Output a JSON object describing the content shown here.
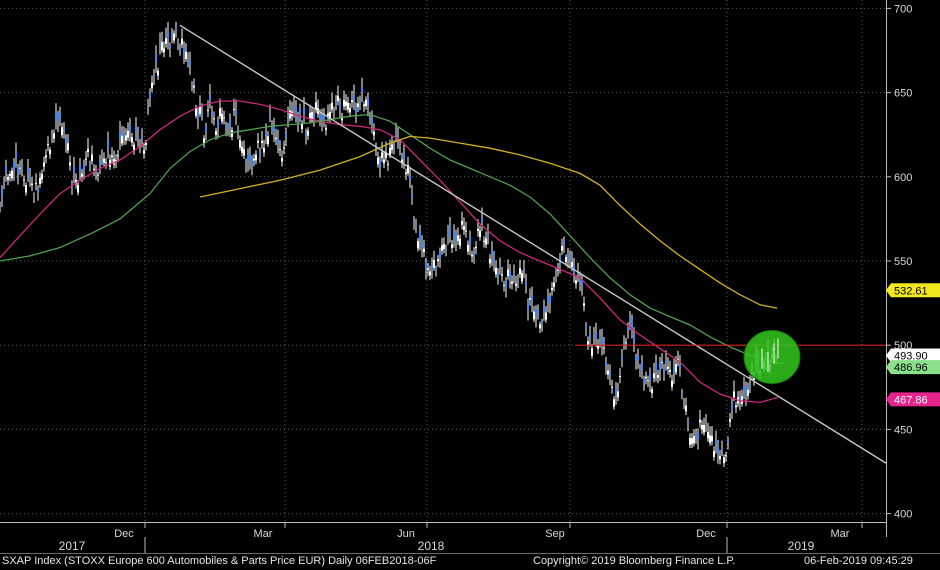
{
  "footer": {
    "index_label": "SXAP Index (STOXX Europe 600 Automobiles & Parts Price EUR)  Daily 06FEB2018-06F",
    "copyright": "Copyright© 2019 Bloomberg Finance L.P.",
    "timestamp": "06-Feb-2019 09:45:29"
  },
  "colors": {
    "price": "#3d86f0",
    "ma_magenta": "#c8287a",
    "ma_green": "#4ea04e",
    "ma_yellow": "#d2b020",
    "trendline": "#c8c8c8",
    "resistance": "#d81e1e",
    "circle": "#35c81e"
  },
  "chart_data": {
    "type": "line",
    "y_axis": {
      "ticks": [
        400,
        450,
        500,
        550,
        600,
        650,
        700
      ],
      "range": [
        395,
        705
      ],
      "position": "right"
    },
    "x_axis": {
      "month_ticks": [
        "Dec",
        "Mar",
        "Jun",
        "Sep",
        "Dec",
        "Mar"
      ],
      "year_labels": [
        "2017",
        "2018",
        "2019"
      ]
    },
    "series": [
      {
        "key": "price",
        "style": "candles",
        "points": [
          [
            0,
            588
          ],
          [
            6,
            603
          ],
          [
            12,
            609
          ],
          [
            18,
            606
          ],
          [
            24,
            602
          ],
          [
            30,
            598
          ],
          [
            36,
            592
          ],
          [
            42,
            605
          ],
          [
            48,
            618
          ],
          [
            54,
            630
          ],
          [
            60,
            637
          ],
          [
            66,
            625
          ],
          [
            72,
            600
          ],
          [
            78,
            598
          ],
          [
            84,
            608
          ],
          [
            90,
            612
          ],
          [
            96,
            606
          ],
          [
            102,
            610
          ],
          [
            108,
            614
          ],
          [
            114,
            608
          ],
          [
            120,
            618
          ],
          [
            126,
            624
          ],
          [
            132,
            627
          ],
          [
            138,
            620
          ],
          [
            144,
            614
          ],
          [
            150,
            650
          ],
          [
            156,
            665
          ],
          [
            162,
            675
          ],
          [
            168,
            678
          ],
          [
            174,
            690
          ],
          [
            180,
            680
          ],
          [
            186,
            672
          ],
          [
            192,
            660
          ],
          [
            198,
            640
          ],
          [
            204,
            628
          ],
          [
            210,
            640
          ],
          [
            216,
            632
          ],
          [
            222,
            638
          ],
          [
            228,
            630
          ],
          [
            234,
            635
          ],
          [
            240,
            625
          ],
          [
            246,
            608
          ],
          [
            252,
            610
          ],
          [
            258,
            620
          ],
          [
            264,
            615
          ],
          [
            270,
            632
          ],
          [
            276,
            620
          ],
          [
            282,
            610
          ],
          [
            288,
            633
          ],
          [
            294,
            635
          ],
          [
            300,
            640
          ],
          [
            306,
            628
          ],
          [
            312,
            640
          ],
          [
            318,
            638
          ],
          [
            324,
            632
          ],
          [
            330,
            636
          ],
          [
            336,
            645
          ],
          [
            342,
            640
          ],
          [
            348,
            645
          ],
          [
            354,
            640
          ],
          [
            360,
            645
          ],
          [
            366,
            650
          ],
          [
            372,
            630
          ],
          [
            378,
            613
          ],
          [
            384,
            607
          ],
          [
            390,
            615
          ],
          [
            396,
            620
          ],
          [
            402,
            610
          ],
          [
            408,
            605
          ],
          [
            414,
            575
          ],
          [
            420,
            563
          ],
          [
            426,
            550
          ],
          [
            432,
            543
          ],
          [
            438,
            555
          ],
          [
            444,
            560
          ],
          [
            450,
            565
          ],
          [
            456,
            560
          ],
          [
            462,
            570
          ],
          [
            468,
            563
          ],
          [
            474,
            555
          ],
          [
            480,
            570
          ],
          [
            486,
            563
          ],
          [
            492,
            550
          ],
          [
            498,
            543
          ],
          [
            504,
            540
          ],
          [
            510,
            540
          ],
          [
            516,
            535
          ],
          [
            522,
            548
          ],
          [
            528,
            525
          ],
          [
            534,
            522
          ],
          [
            540,
            518
          ],
          [
            546,
            520
          ],
          [
            552,
            535
          ],
          [
            558,
            545
          ],
          [
            564,
            565
          ],
          [
            570,
            545
          ],
          [
            576,
            540
          ],
          [
            582,
            535
          ],
          [
            588,
            505
          ],
          [
            594,
            500
          ],
          [
            600,
            500
          ],
          [
            606,
            490
          ],
          [
            612,
            475
          ],
          [
            618,
            470
          ],
          [
            624,
            500
          ],
          [
            630,
            515
          ],
          [
            636,
            495
          ],
          [
            642,
            485
          ],
          [
            648,
            482
          ],
          [
            654,
            478
          ],
          [
            660,
            488
          ],
          [
            666,
            485
          ],
          [
            672,
            480
          ],
          [
            678,
            490
          ],
          [
            684,
            470
          ],
          [
            690,
            448
          ],
          [
            696,
            444
          ],
          [
            702,
            455
          ],
          [
            708,
            445
          ],
          [
            714,
            440
          ],
          [
            720,
            435
          ],
          [
            726,
            440
          ],
          [
            732,
            465
          ],
          [
            738,
            470
          ],
          [
            744,
            470
          ],
          [
            750,
            474
          ],
          [
            756,
            485
          ],
          [
            762,
            492
          ],
          [
            768,
            490
          ],
          [
            774,
            495
          ],
          [
            778,
            498
          ]
        ]
      },
      {
        "key": "ma_magenta",
        "style": "line",
        "points": [
          [
            0,
            552
          ],
          [
            20,
            565
          ],
          [
            40,
            578
          ],
          [
            60,
            590
          ],
          [
            80,
            598
          ],
          [
            100,
            605
          ],
          [
            120,
            610
          ],
          [
            140,
            618
          ],
          [
            160,
            628
          ],
          [
            180,
            636
          ],
          [
            200,
            642
          ],
          [
            220,
            645
          ],
          [
            240,
            645
          ],
          [
            260,
            643
          ],
          [
            280,
            640
          ],
          [
            300,
            636
          ],
          [
            320,
            633
          ],
          [
            340,
            631
          ],
          [
            360,
            630
          ],
          [
            380,
            628
          ],
          [
            400,
            622
          ],
          [
            420,
            610
          ],
          [
            440,
            598
          ],
          [
            460,
            585
          ],
          [
            480,
            572
          ],
          [
            500,
            562
          ],
          [
            520,
            555
          ],
          [
            540,
            550
          ],
          [
            560,
            545
          ],
          [
            580,
            540
          ],
          [
            600,
            528
          ],
          [
            620,
            515
          ],
          [
            640,
            506
          ],
          [
            660,
            498
          ],
          [
            680,
            490
          ],
          [
            700,
            478
          ],
          [
            720,
            471
          ],
          [
            740,
            467
          ],
          [
            760,
            466
          ],
          [
            778,
            469
          ]
        ]
      },
      {
        "key": "ma_green",
        "style": "line",
        "points": [
          [
            0,
            550
          ],
          [
            30,
            553
          ],
          [
            60,
            558
          ],
          [
            90,
            566
          ],
          [
            120,
            575
          ],
          [
            150,
            590
          ],
          [
            170,
            605
          ],
          [
            190,
            615
          ],
          [
            210,
            622
          ],
          [
            230,
            626
          ],
          [
            250,
            628
          ],
          [
            270,
            630
          ],
          [
            290,
            631
          ],
          [
            310,
            632
          ],
          [
            330,
            634
          ],
          [
            350,
            636
          ],
          [
            370,
            637
          ],
          [
            390,
            633
          ],
          [
            410,
            625
          ],
          [
            430,
            617
          ],
          [
            450,
            610
          ],
          [
            470,
            605
          ],
          [
            490,
            600
          ],
          [
            510,
            595
          ],
          [
            530,
            588
          ],
          [
            550,
            578
          ],
          [
            570,
            565
          ],
          [
            590,
            552
          ],
          [
            610,
            540
          ],
          [
            630,
            530
          ],
          [
            650,
            522
          ],
          [
            670,
            517
          ],
          [
            690,
            512
          ],
          [
            710,
            505
          ],
          [
            730,
            499
          ],
          [
            750,
            494
          ],
          [
            770,
            490
          ],
          [
            785,
            489
          ]
        ]
      },
      {
        "key": "ma_yellow",
        "style": "line",
        "points": [
          [
            200,
            588
          ],
          [
            240,
            593
          ],
          [
            280,
            598
          ],
          [
            320,
            604
          ],
          [
            360,
            612
          ],
          [
            390,
            620
          ],
          [
            410,
            624
          ],
          [
            430,
            623
          ],
          [
            460,
            620
          ],
          [
            490,
            617
          ],
          [
            520,
            613
          ],
          [
            550,
            608
          ],
          [
            580,
            602
          ],
          [
            600,
            595
          ],
          [
            620,
            583
          ],
          [
            640,
            572
          ],
          [
            660,
            562
          ],
          [
            680,
            553
          ],
          [
            700,
            545
          ],
          [
            720,
            537
          ],
          [
            740,
            530
          ],
          [
            760,
            524
          ],
          [
            777,
            522
          ]
        ]
      },
      {
        "key": "trendline",
        "style": "line",
        "points": [
          [
            180,
            690
          ],
          [
            886,
            430
          ]
        ]
      },
      {
        "key": "resistance",
        "style": "hline",
        "points": [
          [
            575,
            500
          ],
          [
            886,
            500
          ]
        ]
      }
    ],
    "annotations": [
      {
        "type": "circle",
        "center": [
          772,
          493
        ],
        "radius_y": 15
      }
    ],
    "last_value_labels": [
      {
        "value": "532.61",
        "bg": "#f3e81e",
        "fg": "#000000",
        "y": 532.61
      },
      {
        "value": "493.90",
        "bg": "#ffffff",
        "fg": "#000000",
        "y": 493.9
      },
      {
        "value": "486.96",
        "bg": "#8ce08c",
        "fg": "#000000",
        "y": 486.96
      },
      {
        "value": "467.86",
        "bg": "#e6228c",
        "fg": "#ffffff",
        "y": 467.86
      }
    ]
  }
}
